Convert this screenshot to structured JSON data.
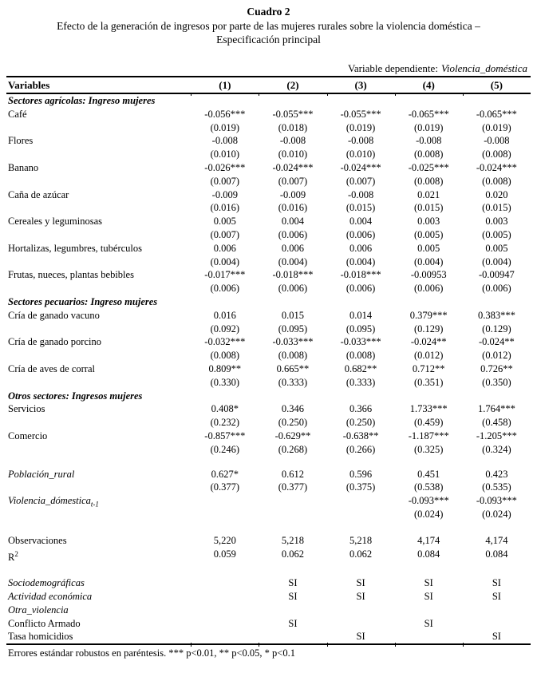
{
  "title": "Cuadro 2",
  "subtitle_line1": "Efecto de la generación de ingresos por parte de las mujeres rurales sobre la violencia doméstica –",
  "subtitle_line2": "Especificación principal",
  "dep_var": {
    "label": "Variable dependiente:",
    "value": "Violencia_doméstica"
  },
  "header": {
    "variables": "Variables",
    "cols": [
      "(1)",
      "(2)",
      "(3)",
      "(4)",
      "(5)"
    ]
  },
  "rows": [
    {
      "type": "section",
      "label": "Sectores agrícolas: Ingreso mujeres"
    },
    {
      "type": "coef",
      "label": "Café",
      "values": [
        "-0.056***",
        "-0.055***",
        "-0.055***",
        "-0.065***",
        "-0.065***"
      ]
    },
    {
      "type": "se",
      "values": [
        "(0.019)",
        "(0.018)",
        "(0.019)",
        "(0.019)",
        "(0.019)"
      ]
    },
    {
      "type": "coef",
      "label": "Flores",
      "values": [
        "-0.008",
        "-0.008",
        "-0.008",
        "-0.008",
        "-0.008"
      ]
    },
    {
      "type": "se",
      "values": [
        "(0.010)",
        "(0.010)",
        "(0.010)",
        "(0.008)",
        "(0.008)"
      ]
    },
    {
      "type": "coef",
      "label": "Banano",
      "values": [
        "-0.026***",
        "-0.024***",
        "-0.024***",
        "-0.025***",
        "-0.024***"
      ]
    },
    {
      "type": "se",
      "values": [
        "(0.007)",
        "(0.007)",
        "(0.007)",
        "(0.008)",
        "(0.008)"
      ]
    },
    {
      "type": "coef",
      "label": "Caña de azúcar",
      "values": [
        "-0.009",
        "-0.009",
        "-0.008",
        "0.021",
        "0.020"
      ]
    },
    {
      "type": "se",
      "values": [
        "(0.016)",
        "(0.016)",
        "(0.015)",
        "(0.015)",
        "(0.015)"
      ]
    },
    {
      "type": "coef",
      "label": "Cereales y leguminosas",
      "values": [
        "0.005",
        "0.004",
        "0.004",
        "0.003",
        "0.003"
      ]
    },
    {
      "type": "se",
      "values": [
        "(0.007)",
        "(0.006)",
        "(0.006)",
        "(0.005)",
        "(0.005)"
      ]
    },
    {
      "type": "coef",
      "label": "Hortalizas, legumbres, tubérculos",
      "values": [
        "0.006",
        "0.006",
        "0.006",
        "0.005",
        "0.005"
      ]
    },
    {
      "type": "se",
      "values": [
        "(0.004)",
        "(0.004)",
        "(0.004)",
        "(0.004)",
        "(0.004)"
      ]
    },
    {
      "type": "coef",
      "label": "Frutas, nueces, plantas bebibles",
      "values": [
        "-0.017***",
        "-0.018***",
        "-0.018***",
        "-0.00953",
        "-0.00947"
      ]
    },
    {
      "type": "se",
      "values": [
        "(0.006)",
        "(0.006)",
        "(0.006)",
        "(0.006)",
        "(0.006)"
      ]
    },
    {
      "type": "section",
      "label": "Sectores pecuarios: Ingreso mujeres"
    },
    {
      "type": "coef",
      "label": "Cría de ganado vacuno",
      "values": [
        "0.016",
        "0.015",
        "0.014",
        "0.379***",
        "0.383***"
      ]
    },
    {
      "type": "se",
      "values": [
        "(0.092)",
        "(0.095)",
        "(0.095)",
        "(0.129)",
        "(0.129)"
      ]
    },
    {
      "type": "coef",
      "label": "Cría de ganado porcino",
      "values": [
        "-0.032***",
        "-0.033***",
        "-0.033***",
        "-0.024**",
        "-0.024**"
      ]
    },
    {
      "type": "se",
      "values": [
        "(0.008)",
        "(0.008)",
        "(0.008)",
        "(0.012)",
        "(0.012)"
      ]
    },
    {
      "type": "coef",
      "label": "Cría de aves de corral",
      "values": [
        "0.809**",
        "0.665**",
        "0.682**",
        "0.712**",
        "0.726**"
      ]
    },
    {
      "type": "se",
      "values": [
        "(0.330)",
        "(0.333)",
        "(0.333)",
        "(0.351)",
        "(0.350)"
      ]
    },
    {
      "type": "section",
      "label": "Otros sectores: Ingresos mujeres"
    },
    {
      "type": "coef",
      "label": "Servicios",
      "values": [
        "0.408*",
        "0.346",
        "0.366",
        "1.733***",
        "1.764***"
      ]
    },
    {
      "type": "se",
      "values": [
        "(0.232)",
        "(0.250)",
        "(0.250)",
        "(0.459)",
        "(0.458)"
      ]
    },
    {
      "type": "coef",
      "label": "Comercio",
      "values": [
        "-0.857***",
        "-0.629**",
        "-0.638**",
        "-1.187***",
        "-1.205***"
      ]
    },
    {
      "type": "se",
      "values": [
        "(0.246)",
        "(0.268)",
        "(0.266)",
        "(0.325)",
        "(0.324)"
      ]
    },
    {
      "type": "spacer",
      "h": 14
    },
    {
      "type": "coef",
      "label": "Población_rural",
      "style": "italic",
      "values": [
        "0.627*",
        "0.612",
        "0.596",
        "0.451",
        "0.423"
      ]
    },
    {
      "type": "se",
      "values": [
        "(0.377)",
        "(0.377)",
        "(0.375)",
        "(0.538)",
        "(0.535)"
      ]
    },
    {
      "type": "coef",
      "label": "Violencia_dómestica",
      "sub": "t-1",
      "style": "italic",
      "values": [
        "",
        "",
        "",
        "-0.093***",
        "-0.093***"
      ]
    },
    {
      "type": "se",
      "values": [
        "",
        "",
        "",
        "(0.024)",
        "(0.024)"
      ]
    },
    {
      "type": "spacer",
      "h": 16
    },
    {
      "type": "coef",
      "label": "Observaciones",
      "values": [
        "5,220",
        "5,218",
        "5,218",
        "4,174",
        "4,174"
      ]
    },
    {
      "type": "coef",
      "label": "R",
      "sup": "2",
      "values": [
        "0.059",
        "0.062",
        "0.062",
        "0.084",
        "0.084"
      ]
    },
    {
      "type": "spacer",
      "h": 20
    },
    {
      "type": "coef",
      "label": "Sociodemográficas",
      "style": "italic",
      "values": [
        "",
        "SI",
        "SI",
        "SI",
        "SI"
      ]
    },
    {
      "type": "coef",
      "label": "Actividad económica",
      "style": "italic",
      "values": [
        "",
        "SI",
        "SI",
        "SI",
        "SI"
      ]
    },
    {
      "type": "coef",
      "label": "Otra_violencia",
      "style": "italic",
      "values": [
        "",
        "",
        "",
        "",
        ""
      ]
    },
    {
      "type": "coef",
      "label": "Conflicto Armado",
      "values": [
        "",
        "SI",
        "",
        "SI",
        ""
      ]
    },
    {
      "type": "coef",
      "label": "Tasa homicidios",
      "values": [
        "",
        "",
        "SI",
        "",
        "SI"
      ]
    }
  ],
  "footer": "Errores estándar robustos en paréntesis. *** p<0.01, ** p<0.05, * p<0.1",
  "colors": {
    "text": "#000000",
    "background": "#ffffff",
    "rule": "#000000"
  }
}
